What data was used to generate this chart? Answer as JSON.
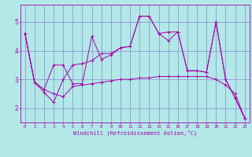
{
  "xlabel": "Windchill (Refroidissement éolien,°C)",
  "background_color": "#b2e8e8",
  "grid_color": "#8888cc",
  "line_color": "#aa00aa",
  "xlim": [
    -0.5,
    23.5
  ],
  "ylim": [
    1.5,
    5.6
  ],
  "yticks": [
    2,
    3,
    4,
    5
  ],
  "xticks": [
    0,
    1,
    2,
    3,
    4,
    5,
    6,
    7,
    8,
    9,
    10,
    11,
    12,
    13,
    14,
    15,
    16,
    17,
    18,
    19,
    20,
    21,
    22,
    23
  ],
  "series": [
    [
      4.6,
      2.9,
      2.65,
      3.5,
      3.5,
      2.85,
      2.85,
      4.5,
      3.7,
      3.85,
      4.1,
      4.15,
      5.2,
      5.2,
      4.6,
      4.35,
      4.65,
      3.3,
      3.3,
      3.25,
      5.0,
      3.0,
      2.35,
      1.65
    ],
    [
      4.6,
      2.9,
      2.65,
      2.5,
      2.4,
      2.75,
      2.8,
      2.85,
      2.9,
      2.95,
      3.0,
      3.0,
      3.05,
      3.05,
      3.1,
      3.1,
      3.1,
      3.1,
      3.1,
      3.1,
      3.0,
      2.8,
      2.5,
      1.65
    ],
    [
      4.6,
      2.9,
      2.55,
      2.2,
      3.0,
      3.5,
      3.55,
      3.65,
      3.9,
      3.9,
      4.1,
      4.15,
      5.2,
      5.2,
      4.6,
      4.65,
      4.65,
      3.3,
      3.3,
      3.25,
      5.0,
      3.0,
      2.35,
      1.65
    ]
  ]
}
